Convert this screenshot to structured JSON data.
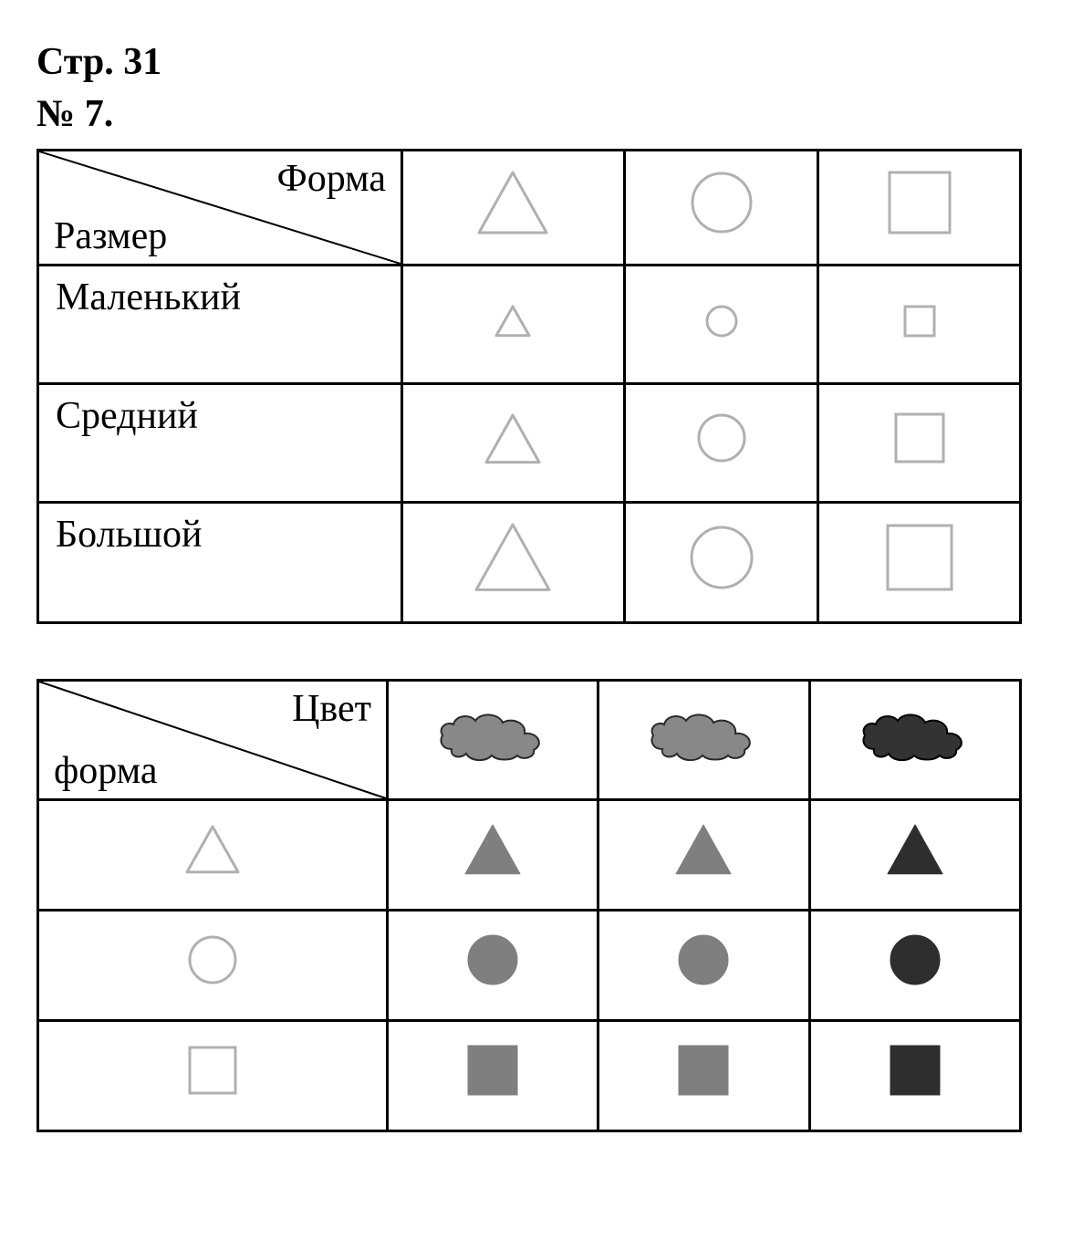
{
  "header": {
    "line1": "Стр. 31",
    "line2": "№ 7."
  },
  "table1": {
    "corner": {
      "top": "Форма",
      "bottom": "Размер"
    },
    "col_widths": {
      "label_col": 360,
      "shape_col": 240
    },
    "header_shapes": [
      {
        "type": "triangle",
        "size": 80,
        "fill": "none",
        "stroke": "#b0b0b0",
        "stroke_width": 3
      },
      {
        "type": "circle",
        "size": 70,
        "fill": "none",
        "stroke": "#b0b0b0",
        "stroke_width": 3
      },
      {
        "type": "square",
        "size": 72,
        "fill": "none",
        "stroke": "#b0b0b0",
        "stroke_width": 3
      }
    ],
    "rows": [
      {
        "label": "Маленький",
        "shapes": [
          {
            "type": "triangle",
            "size": 42,
            "fill": "none",
            "stroke": "#b0b0b0",
            "stroke_width": 3
          },
          {
            "type": "circle",
            "size": 38,
            "fill": "none",
            "stroke": "#b0b0b0",
            "stroke_width": 3
          },
          {
            "type": "square",
            "size": 38,
            "fill": "none",
            "stroke": "#b0b0b0",
            "stroke_width": 3
          }
        ]
      },
      {
        "label": "Средний",
        "shapes": [
          {
            "type": "triangle",
            "size": 64,
            "fill": "none",
            "stroke": "#b0b0b0",
            "stroke_width": 3
          },
          {
            "type": "circle",
            "size": 56,
            "fill": "none",
            "stroke": "#b0b0b0",
            "stroke_width": 3
          },
          {
            "type": "square",
            "size": 58,
            "fill": "none",
            "stroke": "#b0b0b0",
            "stroke_width": 3
          }
        ]
      },
      {
        "label": "Большой",
        "shapes": [
          {
            "type": "triangle",
            "size": 86,
            "fill": "none",
            "stroke": "#b0b0b0",
            "stroke_width": 3
          },
          {
            "type": "circle",
            "size": 72,
            "fill": "none",
            "stroke": "#b0b0b0",
            "stroke_width": 3
          },
          {
            "type": "square",
            "size": 76,
            "fill": "none",
            "stroke": "#b0b0b0",
            "stroke_width": 3
          }
        ]
      }
    ]
  },
  "table2": {
    "corner": {
      "top": "Цвет",
      "bottom": "форма"
    },
    "col_widths": {
      "label_col": 360,
      "shape_col": 240
    },
    "header_clouds": [
      {
        "fill": "#888888",
        "stroke": "#2a2a2a"
      },
      {
        "fill": "#888888",
        "stroke": "#2a2a2a"
      },
      {
        "fill": "#333333",
        "stroke": "#000000"
      }
    ],
    "rows": [
      {
        "label_shape": {
          "type": "triangle",
          "size": 62,
          "fill": "none",
          "stroke": "#b0b0b0",
          "stroke_width": 3
        },
        "shapes": [
          {
            "type": "triangle",
            "size": 62,
            "fill": "#7f7f7f",
            "stroke": "#7f7f7f",
            "stroke_width": 1
          },
          {
            "type": "triangle",
            "size": 62,
            "fill": "#7f7f7f",
            "stroke": "#7f7f7f",
            "stroke_width": 1
          },
          {
            "type": "triangle",
            "size": 62,
            "fill": "#2e2e2e",
            "stroke": "#2e2e2e",
            "stroke_width": 1
          }
        ]
      },
      {
        "label_shape": {
          "type": "circle",
          "size": 56,
          "fill": "none",
          "stroke": "#b0b0b0",
          "stroke_width": 3
        },
        "shapes": [
          {
            "type": "circle",
            "size": 56,
            "fill": "#7f7f7f",
            "stroke": "#7f7f7f",
            "stroke_width": 1
          },
          {
            "type": "circle",
            "size": 56,
            "fill": "#7f7f7f",
            "stroke": "#7f7f7f",
            "stroke_width": 1
          },
          {
            "type": "circle",
            "size": 56,
            "fill": "#2e2e2e",
            "stroke": "#2e2e2e",
            "stroke_width": 1
          }
        ]
      },
      {
        "label_shape": {
          "type": "square",
          "size": 56,
          "fill": "none",
          "stroke": "#b0b0b0",
          "stroke_width": 3
        },
        "shapes": [
          {
            "type": "square",
            "size": 56,
            "fill": "#7f7f7f",
            "stroke": "#7f7f7f",
            "stroke_width": 1
          },
          {
            "type": "square",
            "size": 56,
            "fill": "#7f7f7f",
            "stroke": "#7f7f7f",
            "stroke_width": 1
          },
          {
            "type": "square",
            "size": 56,
            "fill": "#2e2e2e",
            "stroke": "#2e2e2e",
            "stroke_width": 1
          }
        ]
      }
    ]
  }
}
